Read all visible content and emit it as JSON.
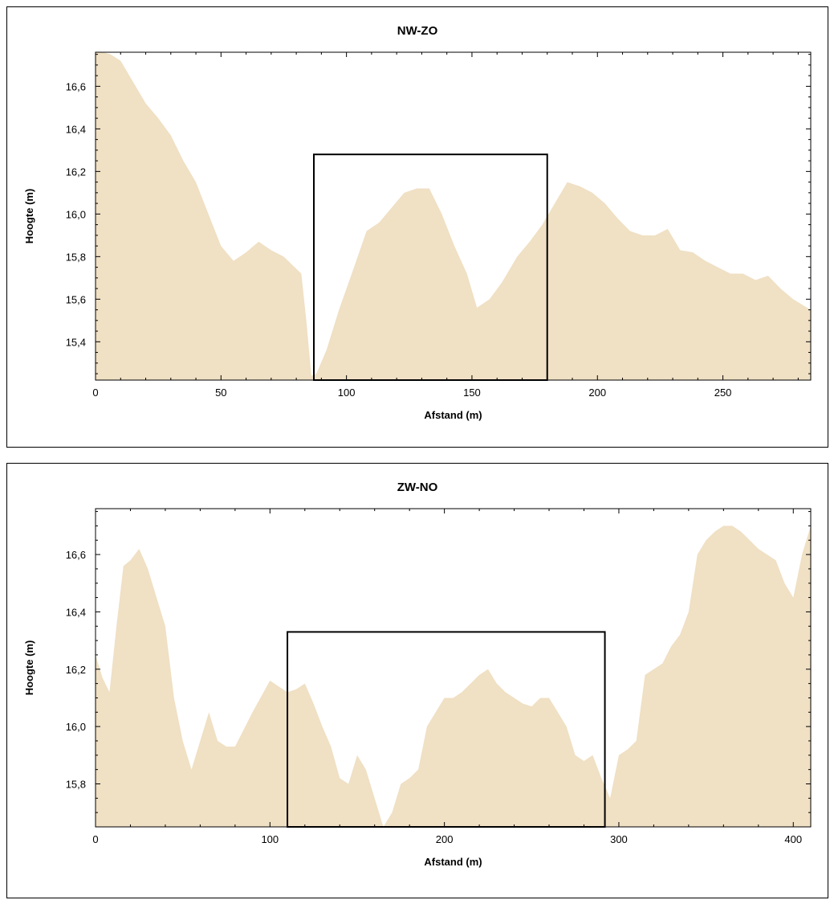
{
  "colors": {
    "fill": "#f0e0c4",
    "axis": "#000000",
    "frame": "#000000"
  },
  "chart_data": [
    {
      "type": "area",
      "title": "NW-ZO",
      "xlabel": "Afstand (m)",
      "ylabel": "Hoogte (m)",
      "xlim": [
        0,
        285
      ],
      "ylim": [
        15.22,
        16.76
      ],
      "x_ticks": [
        0,
        50,
        100,
        150,
        200,
        250
      ],
      "x_tick_labels": [
        "0",
        "50",
        "100",
        "150",
        "200",
        "250"
      ],
      "y_ticks": [
        15.4,
        15.6,
        15.8,
        16.0,
        16.2,
        16.4,
        16.6
      ],
      "y_tick_labels": [
        "15,4",
        "15,6",
        "15,8",
        "16,0",
        "16,2",
        "16,4",
        "16,6"
      ],
      "grid": false,
      "series": [
        {
          "x": [
            0,
            3,
            6,
            10,
            14,
            20,
            25,
            30,
            35,
            40,
            45,
            50,
            55,
            60,
            65,
            70,
            75,
            82,
            84,
            86,
            88,
            92,
            97,
            103,
            108,
            113,
            118,
            123,
            128,
            133,
            138,
            143,
            148,
            152,
            157,
            162,
            168,
            173,
            178,
            183,
            188,
            193,
            198,
            203,
            208,
            213,
            218,
            223,
            228,
            233,
            238,
            243,
            248,
            253,
            258,
            263,
            268,
            273,
            278,
            285
          ],
          "y": [
            16.76,
            16.76,
            16.75,
            16.72,
            16.64,
            16.52,
            16.45,
            16.37,
            16.25,
            16.15,
            16.0,
            15.85,
            15.78,
            15.82,
            15.87,
            15.83,
            15.8,
            15.72,
            15.5,
            15.24,
            15.25,
            15.36,
            15.55,
            15.75,
            15.92,
            15.96,
            16.03,
            16.1,
            16.12,
            16.12,
            16.0,
            15.85,
            15.72,
            15.56,
            15.6,
            15.68,
            15.8,
            15.87,
            15.95,
            16.05,
            16.15,
            16.13,
            16.1,
            16.05,
            15.98,
            15.92,
            15.9,
            15.9,
            15.93,
            15.83,
            15.82,
            15.78,
            15.75,
            15.72,
            15.72,
            15.69,
            15.71,
            15.65,
            15.6,
            15.55
          ]
        }
      ],
      "annotation_box": {
        "x": [
          87,
          180
        ],
        "y_top": 16.28
      }
    },
    {
      "type": "area",
      "title": "ZW-NO",
      "xlabel": "Afstand (m)",
      "ylabel": "Hoogte (m)",
      "xlim": [
        0,
        410
      ],
      "ylim": [
        15.65,
        16.76
      ],
      "x_ticks": [
        0,
        100,
        200,
        300,
        400
      ],
      "x_tick_labels": [
        "0",
        "100",
        "200",
        "300",
        "400"
      ],
      "y_ticks": [
        15.8,
        16.0,
        16.2,
        16.4,
        16.6
      ],
      "y_tick_labels": [
        "15,8",
        "16,0",
        "16,2",
        "16,4",
        "16,6"
      ],
      "grid": false,
      "series": [
        {
          "x": [
            0,
            4,
            8,
            12,
            16,
            20,
            25,
            30,
            35,
            40,
            45,
            50,
            55,
            60,
            65,
            70,
            75,
            80,
            90,
            100,
            105,
            110,
            115,
            120,
            125,
            130,
            135,
            140,
            145,
            150,
            155,
            160,
            165,
            170,
            175,
            180,
            185,
            190,
            195,
            200,
            205,
            210,
            215,
            220,
            225,
            230,
            235,
            240,
            245,
            250,
            255,
            260,
            265,
            270,
            275,
            280,
            285,
            290,
            295,
            300,
            305,
            310,
            315,
            320,
            325,
            330,
            335,
            340,
            345,
            350,
            355,
            360,
            365,
            370,
            375,
            380,
            385,
            390,
            395,
            400,
            405,
            410
          ],
          "y": [
            16.25,
            16.17,
            16.12,
            16.35,
            16.56,
            16.58,
            16.62,
            16.55,
            16.45,
            16.35,
            16.1,
            15.95,
            15.85,
            15.95,
            16.05,
            15.95,
            15.93,
            15.93,
            16.05,
            16.16,
            16.14,
            16.12,
            16.13,
            16.15,
            16.08,
            16.0,
            15.93,
            15.82,
            15.8,
            15.9,
            15.85,
            15.75,
            15.65,
            15.7,
            15.8,
            15.82,
            15.85,
            16.0,
            16.05,
            16.1,
            16.1,
            16.12,
            16.15,
            16.18,
            16.2,
            16.15,
            16.12,
            16.1,
            16.08,
            16.07,
            16.1,
            16.1,
            16.05,
            16.0,
            15.9,
            15.88,
            15.9,
            15.82,
            15.75,
            15.9,
            15.92,
            15.95,
            16.18,
            16.2,
            16.22,
            16.28,
            16.32,
            16.4,
            16.6,
            16.65,
            16.68,
            16.7,
            16.7,
            16.68,
            16.65,
            16.62,
            16.6,
            16.58,
            16.5,
            16.45,
            16.6,
            16.7
          ]
        }
      ],
      "annotation_box": {
        "x": [
          110,
          292
        ],
        "y_top": 16.33
      }
    }
  ]
}
